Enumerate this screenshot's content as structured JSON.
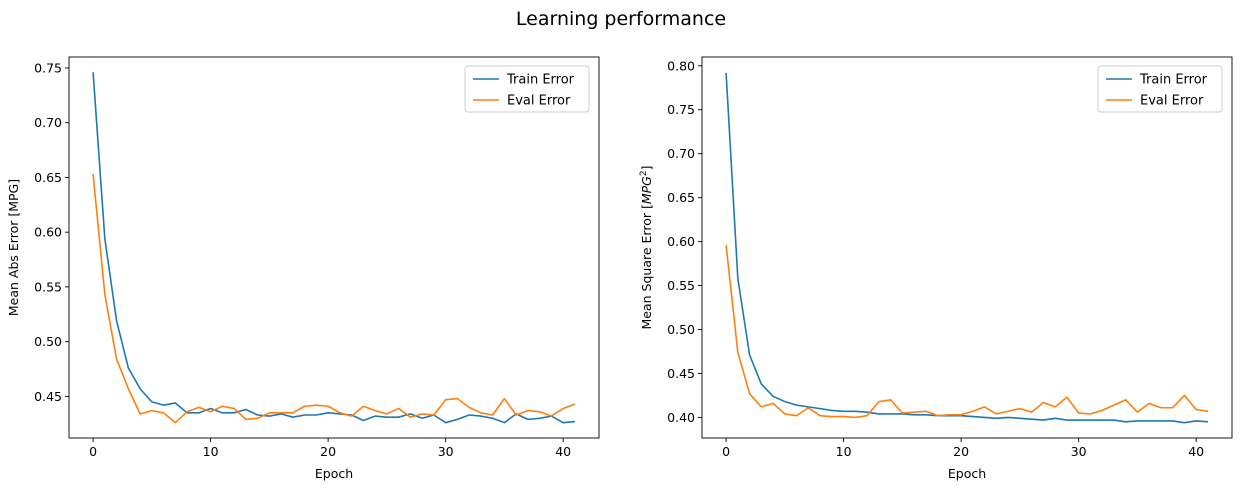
{
  "figure": {
    "title": "Learning performance"
  },
  "chart_data": [
    {
      "type": "line",
      "xlabel": "Epoch",
      "ylabel": "Mean Abs Error [MPG]",
      "xlim": [
        -2.05,
        43.05
      ],
      "ylim": [
        0.412,
        0.76
      ],
      "xticks": [
        0,
        10,
        20,
        30,
        40
      ],
      "yticks": [
        0.45,
        0.5,
        0.55,
        0.6,
        0.65,
        0.7,
        0.75
      ],
      "ytick_labels": [
        "0.45",
        "0.50",
        "0.55",
        "0.60",
        "0.65",
        "0.70",
        "0.75"
      ],
      "grid": false,
      "legend": "top-right",
      "x": [
        0,
        1,
        2,
        3,
        4,
        5,
        6,
        7,
        8,
        9,
        10,
        11,
        12,
        13,
        14,
        15,
        16,
        17,
        18,
        19,
        20,
        21,
        22,
        23,
        24,
        25,
        26,
        27,
        28,
        29,
        30,
        31,
        32,
        33,
        34,
        35,
        36,
        37,
        38,
        39,
        40,
        41
      ],
      "series": [
        {
          "name": "Train Error",
          "color": "#1f77b4",
          "values": [
            0.746,
            0.594,
            0.519,
            0.476,
            0.457,
            0.445,
            0.442,
            0.444,
            0.435,
            0.435,
            0.439,
            0.435,
            0.435,
            0.438,
            0.433,
            0.432,
            0.434,
            0.431,
            0.433,
            0.433,
            0.435,
            0.434,
            0.433,
            0.428,
            0.432,
            0.431,
            0.431,
            0.434,
            0.43,
            0.433,
            0.426,
            0.429,
            0.433,
            0.432,
            0.43,
            0.426,
            0.434,
            0.429,
            0.43,
            0.432,
            0.426,
            0.427
          ]
        },
        {
          "name": "Eval Error",
          "color": "#ff7f0e",
          "values": [
            0.653,
            0.543,
            0.484,
            0.457,
            0.434,
            0.437,
            0.435,
            0.426,
            0.436,
            0.44,
            0.436,
            0.441,
            0.439,
            0.429,
            0.43,
            0.435,
            0.435,
            0.435,
            0.441,
            0.442,
            0.441,
            0.435,
            0.432,
            0.441,
            0.437,
            0.434,
            0.439,
            0.431,
            0.434,
            0.433,
            0.447,
            0.448,
            0.44,
            0.435,
            0.433,
            0.448,
            0.433,
            0.437,
            0.436,
            0.432,
            0.439,
            0.443
          ]
        }
      ]
    },
    {
      "type": "line",
      "xlabel": "Epoch",
      "ylabel_prefix": "Mean Square Error [",
      "ylabel_math_base": "MPG",
      "ylabel_math_sup": "2",
      "ylabel_suffix": "]",
      "xlim": [
        -2.05,
        43.05
      ],
      "ylim": [
        0.3766,
        0.81
      ],
      "xticks": [
        0,
        10,
        20,
        30,
        40
      ],
      "yticks": [
        0.4,
        0.45,
        0.5,
        0.55,
        0.6,
        0.65,
        0.7,
        0.75,
        0.8
      ],
      "ytick_labels": [
        "0.40",
        "0.45",
        "0.50",
        "0.55",
        "0.60",
        "0.65",
        "0.70",
        "0.75",
        "0.80"
      ],
      "grid": false,
      "legend": "top-right",
      "x": [
        0,
        1,
        2,
        3,
        4,
        5,
        6,
        7,
        8,
        9,
        10,
        11,
        12,
        13,
        14,
        15,
        16,
        17,
        18,
        19,
        20,
        21,
        22,
        23,
        24,
        25,
        26,
        27,
        28,
        29,
        30,
        31,
        32,
        33,
        34,
        35,
        36,
        37,
        38,
        39,
        40,
        41
      ],
      "series": [
        {
          "name": "Train Error",
          "color": "#1f77b4",
          "values": [
            0.792,
            0.558,
            0.471,
            0.438,
            0.424,
            0.418,
            0.414,
            0.412,
            0.41,
            0.408,
            0.407,
            0.407,
            0.406,
            0.404,
            0.404,
            0.404,
            0.403,
            0.403,
            0.402,
            0.402,
            0.402,
            0.401,
            0.4,
            0.399,
            0.4,
            0.399,
            0.398,
            0.397,
            0.399,
            0.397,
            0.397,
            0.397,
            0.397,
            0.397,
            0.395,
            0.396,
            0.396,
            0.396,
            0.396,
            0.394,
            0.396,
            0.395
          ]
        },
        {
          "name": "Eval Error",
          "color": "#ff7f0e",
          "values": [
            0.596,
            0.474,
            0.427,
            0.412,
            0.416,
            0.404,
            0.402,
            0.411,
            0.402,
            0.401,
            0.401,
            0.4,
            0.402,
            0.418,
            0.42,
            0.405,
            0.406,
            0.407,
            0.402,
            0.403,
            0.403,
            0.407,
            0.412,
            0.404,
            0.407,
            0.41,
            0.406,
            0.417,
            0.412,
            0.423,
            0.405,
            0.404,
            0.408,
            0.414,
            0.42,
            0.406,
            0.416,
            0.411,
            0.411,
            0.425,
            0.409,
            0.407
          ]
        }
      ]
    }
  ]
}
